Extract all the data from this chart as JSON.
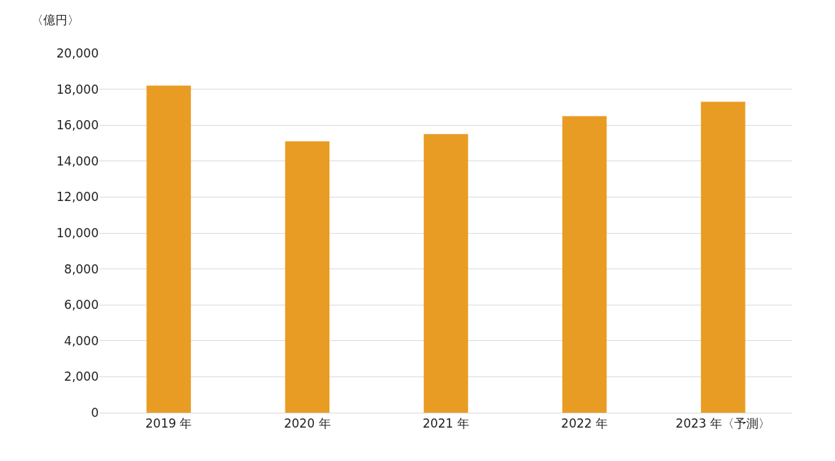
{
  "chart_data": {
    "type": "bar",
    "ylabel": "〈億円〉",
    "categories": [
      "2019 年",
      "2020 年",
      "2021 年",
      "2022 年",
      "2023 年〈予測〉"
    ],
    "values": [
      18200,
      15100,
      15500,
      16500,
      17300
    ],
    "color": "#e99c23",
    "ylim": [
      0,
      20000
    ],
    "yticks": [
      {
        "value": 0,
        "label": "0"
      },
      {
        "value": 2000,
        "label": "2,000"
      },
      {
        "value": 4000,
        "label": "4,000"
      },
      {
        "value": 6000,
        "label": "6,000"
      },
      {
        "value": 8000,
        "label": "8,000"
      },
      {
        "value": 10000,
        "label": "10,000"
      },
      {
        "value": 12000,
        "label": "12,000"
      },
      {
        "value": 14000,
        "label": "14,000"
      },
      {
        "value": 16000,
        "label": "16,000"
      },
      {
        "value": 18000,
        "label": "18,000"
      },
      {
        "value": 20000,
        "label": "20,000"
      }
    ],
    "grid": "y"
  }
}
